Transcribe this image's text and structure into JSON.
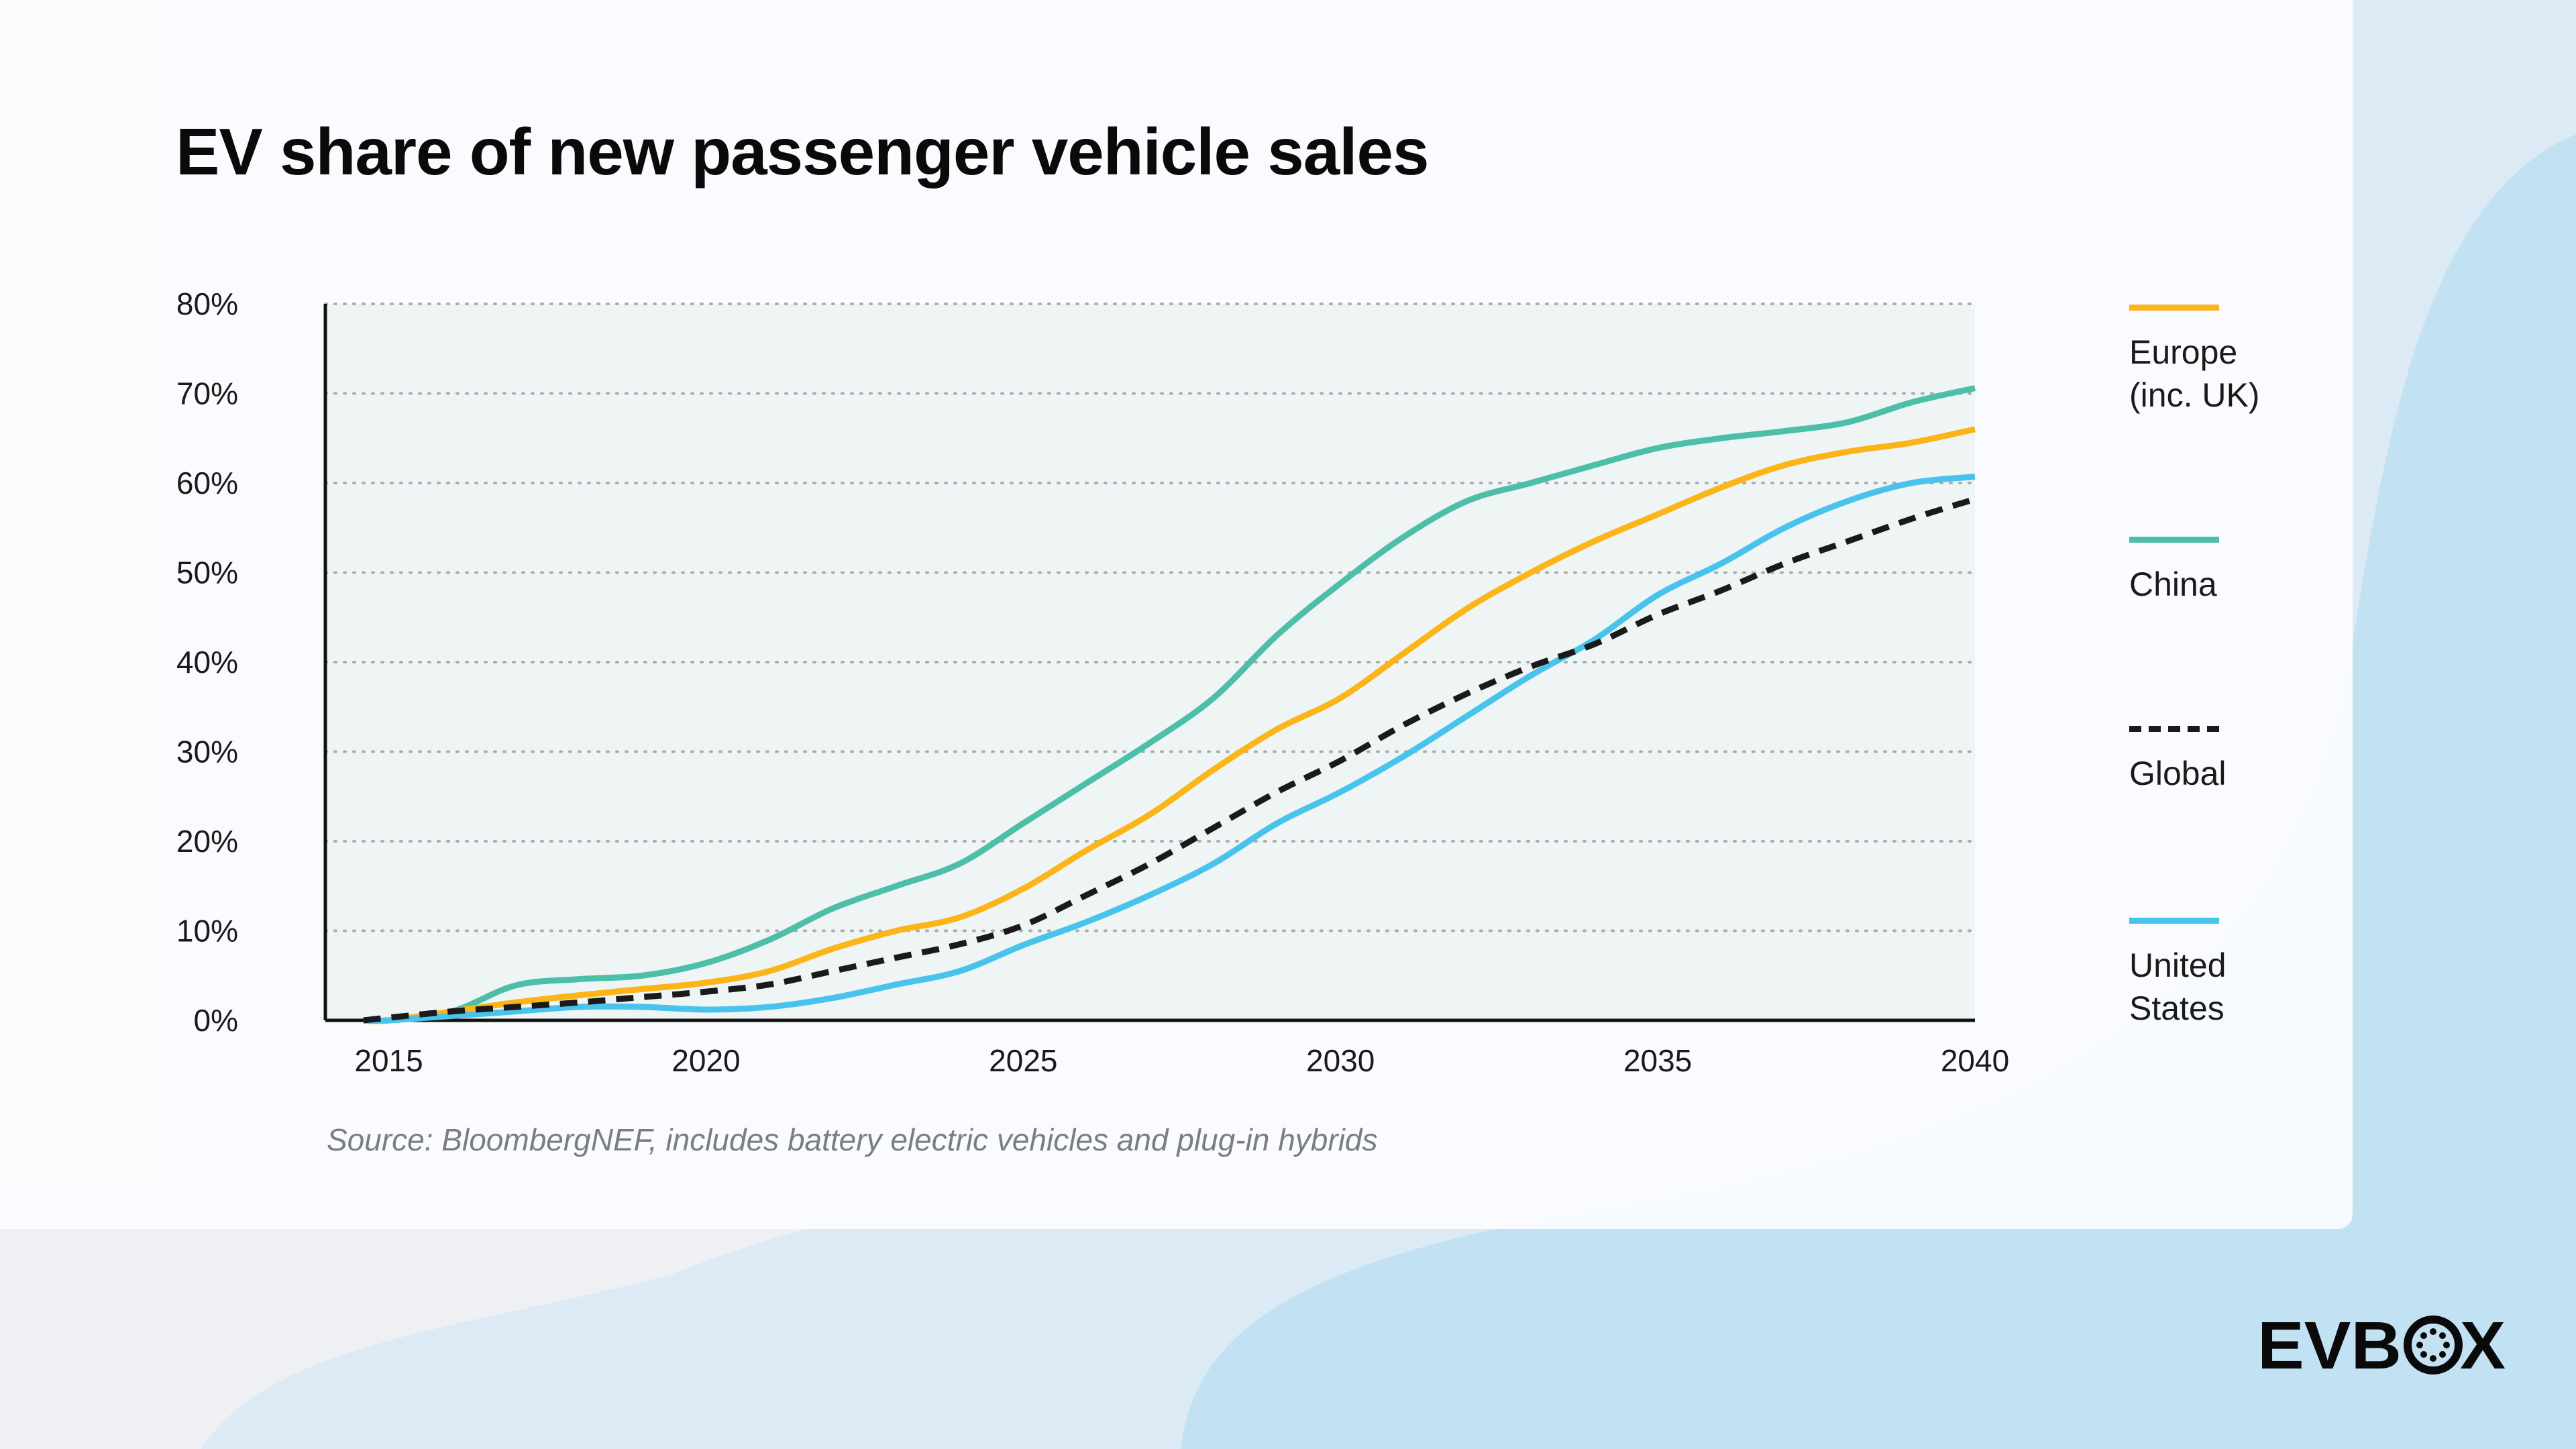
{
  "title": "EV share of new passenger vehicle sales",
  "source": "Source: BloombergNEF, includes battery electric vehicles and plug-in hybrids",
  "logo_text": "EVBOX",
  "chart_data": {
    "type": "line",
    "title": "EV share of new passenger vehicle sales",
    "xlabel": "",
    "ylabel": "",
    "xlim": [
      2014,
      2040
    ],
    "ylim": [
      0,
      80
    ],
    "x_ticks": [
      "2015",
      "2020",
      "2025",
      "2030",
      "2035",
      "2040"
    ],
    "y_ticks": [
      "0%",
      "10%",
      "20%",
      "30%",
      "40%",
      "50%",
      "60%",
      "70%",
      "80%"
    ],
    "grid": "horizontal dotted",
    "legend_placement": "right",
    "x": [
      2015,
      2016,
      2017,
      2018,
      2019,
      2020,
      2021,
      2022,
      2023,
      2024,
      2025,
      2026,
      2027,
      2028,
      2029,
      2030,
      2031,
      2032,
      2033,
      2034,
      2035,
      2036,
      2037,
      2038,
      2039,
      2040
    ],
    "series": [
      {
        "name": "Europe (inc. UK)",
        "color": "#fbb519",
        "dash": false,
        "values": [
          0,
          1,
          2,
          2.8,
          3.5,
          4.2,
          5.5,
          8,
          10,
          11.5,
          14.7,
          19,
          23,
          28,
          32.5,
          36,
          41,
          46,
          50,
          53.5,
          56.5,
          59.5,
          62,
          63.5,
          64.5,
          66
        ]
      },
      {
        "name": "China",
        "color": "#4dbfa8",
        "dash": false,
        "values": [
          0,
          1,
          3.9,
          4.6,
          5,
          6.4,
          9,
          12.5,
          15,
          17.5,
          22,
          26.5,
          31,
          36,
          43,
          48.8,
          54,
          58,
          60,
          62,
          63.9,
          65,
          65.8,
          66.8,
          69,
          70.6
        ]
      },
      {
        "name": "Global",
        "color": "#1a1a1a",
        "dash": true,
        "values": [
          0.3,
          1,
          1.5,
          2,
          2.6,
          3.2,
          4,
          5.5,
          7,
          8.5,
          10.6,
          14,
          17.5,
          21.5,
          25.5,
          29,
          33,
          36.5,
          39.5,
          42,
          45.3,
          48,
          51,
          53.5,
          56,
          58.2
        ]
      },
      {
        "name": "United States",
        "color": "#48c3ec",
        "dash": false,
        "values": [
          0,
          0.5,
          1,
          1.5,
          1.5,
          1.2,
          1.5,
          2.5,
          4,
          5.5,
          8.4,
          11,
          14,
          17.5,
          22,
          25.5,
          29.5,
          34,
          38.5,
          42.5,
          47.5,
          51,
          55,
          58,
          60,
          60.7
        ]
      }
    ]
  }
}
